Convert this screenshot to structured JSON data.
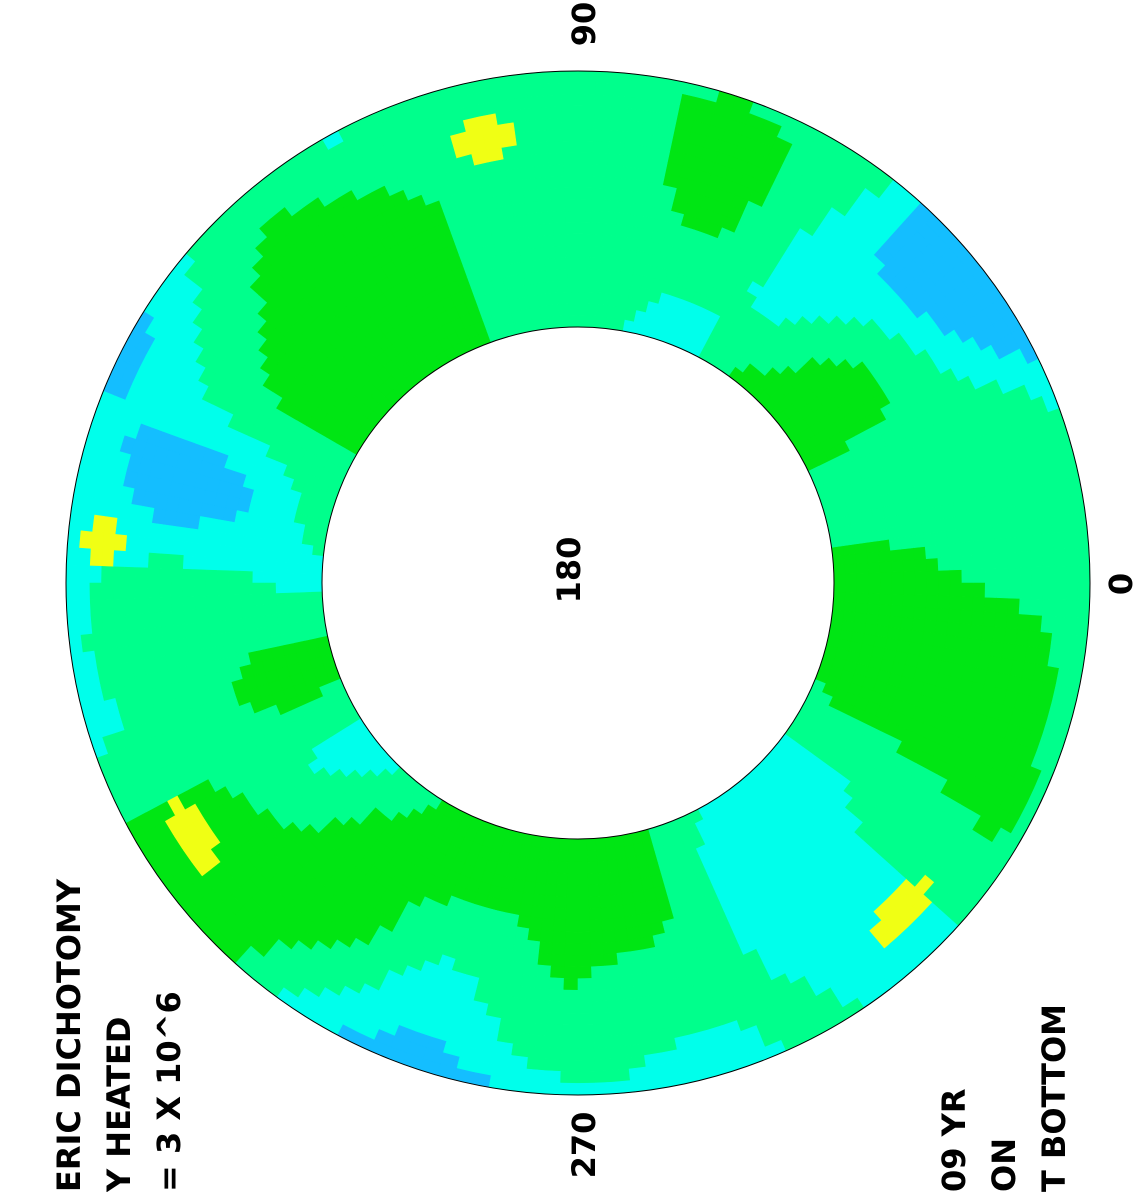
{
  "angle_labels": [
    "90",
    "180",
    "0",
    "270"
  ],
  "title_lines": [
    "ERIC DICHOTOMY",
    "Y HEATED",
    "= 3 X 10^6"
  ],
  "info_lines": [
    "09 YR",
    "ON",
    "T BOTTOM"
  ],
  "colors": {
    "background": "#ffffff",
    "outline": "#000000",
    "green_rgb": [
      0,
      230,
      20
    ],
    "mint_rgb": [
      0,
      255,
      140
    ],
    "cyan_rgb": [
      0,
      255,
      235
    ],
    "blue_rgb": [
      20,
      190,
      255
    ],
    "yellow_rgb": [
      240,
      255,
      20
    ]
  }
}
